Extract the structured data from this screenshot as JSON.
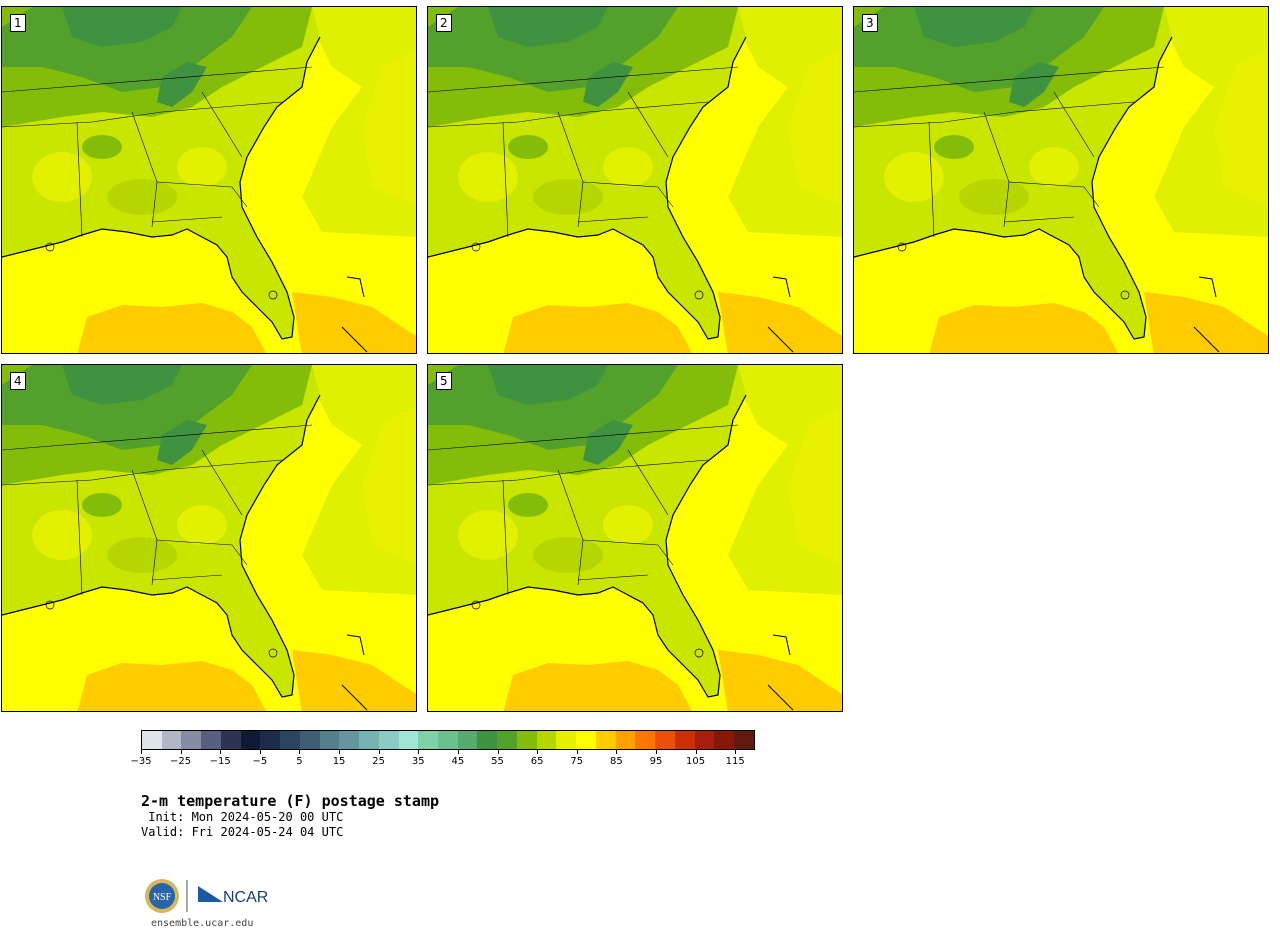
{
  "panels": [
    {
      "label": "1"
    },
    {
      "label": "2"
    },
    {
      "label": "3"
    },
    {
      "label": "4"
    },
    {
      "label": "5"
    }
  ],
  "colorbar": {
    "colors": [
      "#dfe3ea",
      "#b2b7c8",
      "#858ca3",
      "#586080",
      "#2d3553",
      "#0f1b35",
      "#1b2b48",
      "#2c4660",
      "#3f5d73",
      "#527f8b",
      "#6596a0",
      "#77b3b3",
      "#8acbc3",
      "#a2e6d7",
      "#7fd1a8",
      "#6cbf8f",
      "#56aa6d",
      "#3f9240",
      "#53a12a",
      "#83bd0a",
      "#b6d600",
      "#e3f000",
      "#ffff00",
      "#ffcc00",
      "#ffa200",
      "#ff7700",
      "#ee4f08",
      "#cc2f05",
      "#a8200d",
      "#861709",
      "#621a10"
    ],
    "tick_labels": [
      "−35",
      "−25",
      "−15",
      "−5",
      "5",
      "15",
      "25",
      "35",
      "45",
      "55",
      "65",
      "75",
      "85",
      "95",
      "105",
      "115"
    ],
    "min": -40,
    "max": 120
  },
  "title": "2-m temperature (F) postage stamp",
  "init": " Init: Mon 2024-05-20 00 UTC",
  "valid": "Valid: Fri 2024-05-24 04 UTC",
  "logo": {
    "nsf": "NSF",
    "ncar": "NCAR"
  },
  "site": "ensemble.ucar.edu"
}
